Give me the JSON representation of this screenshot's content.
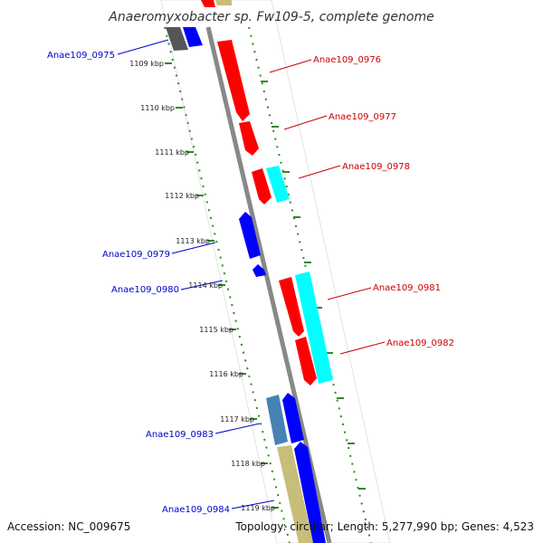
{
  "title": "Anaeromyxobacter sp. Fw109-5, complete genome",
  "footer": {
    "accession": "Accession: NC_009675",
    "summary": "Topology: circular; Length: 5,277,990 bp; Genes: 4,523"
  },
  "ticks": [
    {
      "label": "1109 kbp"
    },
    {
      "label": "1110 kbp"
    },
    {
      "label": "1111 kbp"
    },
    {
      "label": "1112 kbp"
    },
    {
      "label": "1113 kbp"
    },
    {
      "label": "1114 kbp"
    },
    {
      "label": "1115 kbp"
    },
    {
      "label": "1116 kbp"
    },
    {
      "label": "1117 kbp"
    },
    {
      "label": "1118 kbp"
    },
    {
      "label": "1119 kbp"
    }
  ],
  "gene_labels": {
    "g0975": "Anae109_0975",
    "g0976": "Anae109_0976",
    "g0977": "Anae109_0977",
    "g0978": "Anae109_0978",
    "g0979": "Anae109_0979",
    "g0980": "Anae109_0980",
    "g0981": "Anae109_0981",
    "g0982": "Anae109_0982",
    "g0983": "Anae109_0983",
    "g0984": "Anae109_0984"
  },
  "colors": {
    "reverse_strand_label": "#0000cc",
    "forward_strand_label": "#cc0000",
    "cds_red": "#ff0000",
    "cds_blue": "#0000ff",
    "cds_cyan": "#00ffff",
    "cds_steelblue": "#4682b4",
    "cds_khaki": "#c8bd79",
    "cds_gray": "#555555",
    "backbone": "#888888",
    "tick_dots": "#2e8b1f"
  }
}
